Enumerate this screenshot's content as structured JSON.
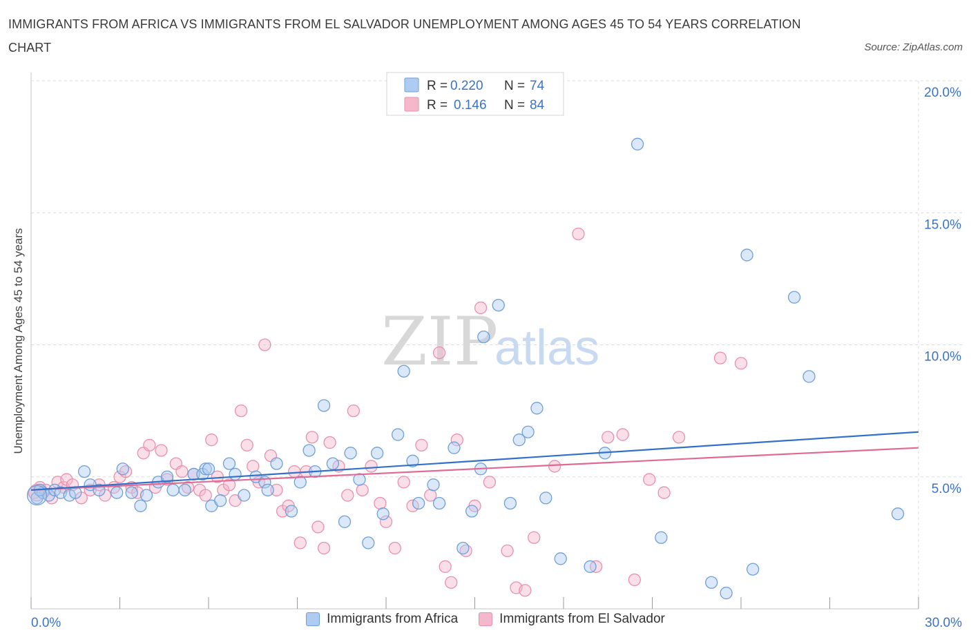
{
  "header": {
    "title": "IMMIGRANTS FROM AFRICA VS IMMIGRANTS FROM EL SALVADOR UNEMPLOYMENT AMONG AGES 45 TO 54 YEARS CORRELATION CHART",
    "source": "Source: ZipAtlas.com"
  },
  "watermark": {
    "zip": "ZIP",
    "atlas": "atlas"
  },
  "colors": {
    "africa_fill": "#aecbf2",
    "africa_stroke": "#6f9fd8",
    "africa_line": "#3371c8",
    "salvador_fill": "#f5b8cb",
    "salvador_stroke": "#e890ad",
    "salvador_line": "#e06a93",
    "axis_text": "#3b72c6",
    "grid": "#dcdcdc"
  },
  "stats_legend": {
    "rows": [
      {
        "r_label": "R =",
        "r_value": "0.220",
        "n_label": "N =",
        "n_value": "74"
      },
      {
        "r_label": "R =",
        "r_value": "0.146",
        "n_label": "N =",
        "n_value": "84"
      }
    ]
  },
  "chart_data": {
    "type": "scatter",
    "title": "IMMIGRANTS FROM AFRICA VS IMMIGRANTS FROM EL SALVADOR UNEMPLOYMENT AMONG AGES 45 TO 54 YEARS CORRELATION CHART",
    "xlabel": "",
    "ylabel": "Unemployment Among Ages 45 to 54 years",
    "xlim": [
      0,
      30
    ],
    "ylim": [
      0,
      20
    ],
    "x_tick_labels": [
      "0.0%",
      "30.0%"
    ],
    "y_ticks": [
      5,
      10,
      15,
      20
    ],
    "y_tick_labels": [
      "5.0%",
      "10.0%",
      "15.0%",
      "20.0%"
    ],
    "grid": true,
    "legend_position": "bottom",
    "series": [
      {
        "name": "Immigrants from Africa",
        "trend": [
          [
            0,
            4.5
          ],
          [
            30,
            6.7
          ]
        ],
        "points": [
          [
            0.2,
            4.2
          ],
          [
            0.4,
            4.4
          ],
          [
            0.6,
            4.3
          ],
          [
            0.8,
            4.5
          ],
          [
            1.0,
            4.4
          ],
          [
            1.3,
            4.3
          ],
          [
            1.5,
            4.4
          ],
          [
            1.8,
            5.2
          ],
          [
            2.0,
            4.7
          ],
          [
            2.3,
            4.5
          ],
          [
            2.9,
            4.4
          ],
          [
            3.1,
            5.3
          ],
          [
            3.4,
            4.4
          ],
          [
            3.7,
            3.9
          ],
          [
            3.9,
            4.3
          ],
          [
            4.3,
            4.8
          ],
          [
            4.6,
            5.0
          ],
          [
            4.8,
            4.5
          ],
          [
            5.2,
            4.5
          ],
          [
            5.5,
            5.1
          ],
          [
            5.8,
            5.1
          ],
          [
            5.9,
            5.3
          ],
          [
            6.1,
            3.9
          ],
          [
            6.4,
            4.1
          ],
          [
            6.7,
            5.5
          ],
          [
            6.9,
            5.1
          ],
          [
            7.2,
            4.3
          ],
          [
            7.6,
            5.0
          ],
          [
            7.9,
            4.8
          ],
          [
            8.0,
            4.5
          ],
          [
            8.3,
            5.5
          ],
          [
            8.8,
            3.7
          ],
          [
            9.1,
            4.8
          ],
          [
            9.4,
            6.0
          ],
          [
            9.6,
            5.2
          ],
          [
            9.9,
            7.7
          ],
          [
            10.2,
            5.5
          ],
          [
            10.6,
            3.3
          ],
          [
            10.8,
            5.9
          ],
          [
            11.1,
            4.9
          ],
          [
            11.4,
            2.5
          ],
          [
            11.7,
            5.9
          ],
          [
            11.9,
            3.6
          ],
          [
            12.4,
            6.6
          ],
          [
            12.6,
            9.0
          ],
          [
            12.9,
            5.6
          ],
          [
            13.1,
            4.0
          ],
          [
            13.6,
            4.7
          ],
          [
            13.8,
            4.0
          ],
          [
            14.3,
            6.1
          ],
          [
            14.6,
            2.3
          ],
          [
            14.9,
            3.7
          ],
          [
            15.2,
            5.3
          ],
          [
            15.3,
            10.3
          ],
          [
            15.8,
            11.5
          ],
          [
            16.2,
            4.0
          ],
          [
            16.5,
            6.4
          ],
          [
            16.8,
            6.7
          ],
          [
            17.1,
            7.6
          ],
          [
            17.4,
            4.2
          ],
          [
            17.9,
            1.9
          ],
          [
            18.9,
            1.6
          ],
          [
            19.4,
            5.9
          ],
          [
            20.5,
            17.6
          ],
          [
            21.3,
            2.7
          ],
          [
            23.0,
            1.0
          ],
          [
            23.5,
            0.6
          ],
          [
            24.2,
            13.4
          ],
          [
            24.4,
            1.5
          ],
          [
            25.8,
            11.8
          ],
          [
            26.3,
            8.8
          ],
          [
            29.3,
            3.6
          ],
          [
            0.3,
            4.5
          ],
          [
            6.0,
            5.3
          ]
        ]
      },
      {
        "name": "Immigrants from El Salvador",
        "trend": [
          [
            0,
            4.5
          ],
          [
            30,
            6.1
          ]
        ],
        "points": [
          [
            0.1,
            4.4
          ],
          [
            0.3,
            4.6
          ],
          [
            0.5,
            4.5
          ],
          [
            0.7,
            4.2
          ],
          [
            0.9,
            4.8
          ],
          [
            1.1,
            4.6
          ],
          [
            1.2,
            4.9
          ],
          [
            1.4,
            4.7
          ],
          [
            1.7,
            4.2
          ],
          [
            2.0,
            4.5
          ],
          [
            2.3,
            4.7
          ],
          [
            2.5,
            4.3
          ],
          [
            2.8,
            4.6
          ],
          [
            3.0,
            5.0
          ],
          [
            3.2,
            5.2
          ],
          [
            3.4,
            4.6
          ],
          [
            3.6,
            4.4
          ],
          [
            3.8,
            5.9
          ],
          [
            4.0,
            6.2
          ],
          [
            4.2,
            4.6
          ],
          [
            4.4,
            6.0
          ],
          [
            4.6,
            4.9
          ],
          [
            4.9,
            5.5
          ],
          [
            5.1,
            5.2
          ],
          [
            5.3,
            4.6
          ],
          [
            5.5,
            5.1
          ],
          [
            5.7,
            4.5
          ],
          [
            5.9,
            4.3
          ],
          [
            6.1,
            6.4
          ],
          [
            6.3,
            5.0
          ],
          [
            6.5,
            4.5
          ],
          [
            6.7,
            4.7
          ],
          [
            6.9,
            4.1
          ],
          [
            7.1,
            7.5
          ],
          [
            7.3,
            6.2
          ],
          [
            7.5,
            5.4
          ],
          [
            7.7,
            4.8
          ],
          [
            7.9,
            10.0
          ],
          [
            8.1,
            5.8
          ],
          [
            8.3,
            4.5
          ],
          [
            8.5,
            3.7
          ],
          [
            8.7,
            3.9
          ],
          [
            8.9,
            5.2
          ],
          [
            9.1,
            2.5
          ],
          [
            9.3,
            5.2
          ],
          [
            9.5,
            6.5
          ],
          [
            9.7,
            3.1
          ],
          [
            9.9,
            2.3
          ],
          [
            10.1,
            6.3
          ],
          [
            10.4,
            5.4
          ],
          [
            10.7,
            4.3
          ],
          [
            10.9,
            7.5
          ],
          [
            11.2,
            4.5
          ],
          [
            11.5,
            5.4
          ],
          [
            11.8,
            4.0
          ],
          [
            12.0,
            3.3
          ],
          [
            12.3,
            2.3
          ],
          [
            12.6,
            4.8
          ],
          [
            12.9,
            3.9
          ],
          [
            13.2,
            6.2
          ],
          [
            13.5,
            4.3
          ],
          [
            13.8,
            9.7
          ],
          [
            14.0,
            1.6
          ],
          [
            14.2,
            1.0
          ],
          [
            14.4,
            6.4
          ],
          [
            14.7,
            2.2
          ],
          [
            15.0,
            3.9
          ],
          [
            15.2,
            11.4
          ],
          [
            15.5,
            4.8
          ],
          [
            16.1,
            2.2
          ],
          [
            16.4,
            0.8
          ],
          [
            16.7,
            0.7
          ],
          [
            17.0,
            2.7
          ],
          [
            17.7,
            5.4
          ],
          [
            18.5,
            14.2
          ],
          [
            19.1,
            1.6
          ],
          [
            19.5,
            6.5
          ],
          [
            20.0,
            6.6
          ],
          [
            20.4,
            1.1
          ],
          [
            20.9,
            4.9
          ],
          [
            21.4,
            4.4
          ],
          [
            21.9,
            6.5
          ],
          [
            23.3,
            9.5
          ],
          [
            24.0,
            9.3
          ]
        ]
      }
    ]
  },
  "bottom_legend": {
    "africa_label": "Immigrants from Africa",
    "salvador_label": "Immigrants from El Salvador"
  }
}
